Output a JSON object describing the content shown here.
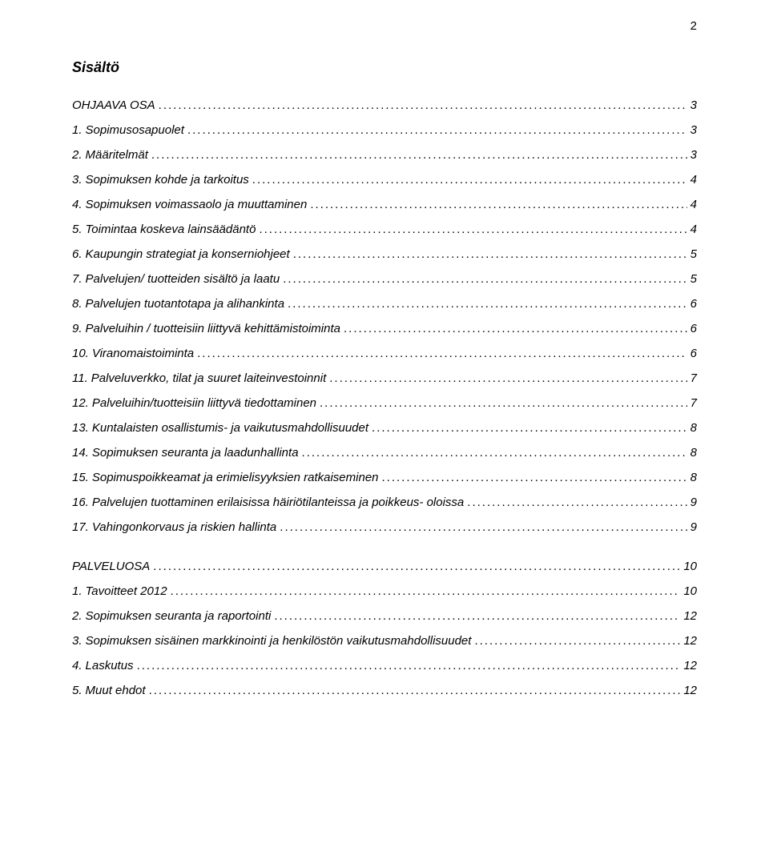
{
  "page_number": "2",
  "heading": "Sisältö",
  "sections": [
    {
      "title": "OHJAAVA OSA",
      "title_page": "3",
      "items": [
        {
          "num": "1.",
          "label": "Sopimusosapuolet",
          "page": "3"
        },
        {
          "num": "2.",
          "label": "Määritelmät",
          "page": "3"
        },
        {
          "num": "3.",
          "label": "Sopimuksen kohde ja tarkoitus",
          "page": "4"
        },
        {
          "num": "4.",
          "label": "Sopimuksen voimassaolo ja muuttaminen",
          "page": "4"
        },
        {
          "num": "5.",
          "label": "Toimintaa koskeva lainsäädäntö",
          "page": "4"
        },
        {
          "num": "6.",
          "label": "Kaupungin strategiat ja konserniohjeet",
          "page": "5"
        },
        {
          "num": "7.",
          "label": "Palvelujen/ tuotteiden sisältö ja laatu",
          "page": "5"
        },
        {
          "num": "8.",
          "label": "Palvelujen tuotantotapa ja alihankinta",
          "page": "6"
        },
        {
          "num": "9.",
          "label": "Palveluihin / tuotteisiin liittyvä kehittämistoiminta",
          "page": "6"
        },
        {
          "num": "10.",
          "label": "Viranomaistoiminta",
          "page": "6"
        },
        {
          "num": "11.",
          "label": "Palveluverkko, tilat ja suuret laiteinvestoinnit",
          "page": "7"
        },
        {
          "num": "12.",
          "label": "Palveluihin/tuotteisiin liittyvä tiedottaminen",
          "page": "7"
        },
        {
          "num": "13.",
          "label": "Kuntalaisten osallistumis- ja vaikutusmahdollisuudet",
          "page": "8"
        },
        {
          "num": "14.",
          "label": "Sopimuksen seuranta ja laadunhallinta",
          "page": "8"
        },
        {
          "num": "15.",
          "label": "Sopimuspoikkeamat ja erimielisyyksien ratkaiseminen",
          "page": "8"
        },
        {
          "num": "16.",
          "label": "Palvelujen tuottaminen erilaisissa häiriötilanteissa ja poikkeus- oloissa",
          "page": "9"
        },
        {
          "num": "17.",
          "label": "Vahingonkorvaus ja riskien hallinta",
          "page": "9"
        }
      ]
    },
    {
      "title": "PALVELUOSA",
      "title_page": "10",
      "items": [
        {
          "num": "1.",
          "label": "Tavoitteet 2012",
          "page": "10"
        },
        {
          "num": "2.",
          "label": "Sopimuksen seuranta ja raportointi",
          "page": "12"
        },
        {
          "num": "3.",
          "label": "Sopimuksen sisäinen markkinointi ja henkilöstön vaikutusmahdollisuudet",
          "page": "12"
        },
        {
          "num": "4.",
          "label": "Laskutus",
          "page": "12"
        },
        {
          "num": "5.",
          "label": "Muut ehdot",
          "page": "12"
        }
      ]
    }
  ]
}
